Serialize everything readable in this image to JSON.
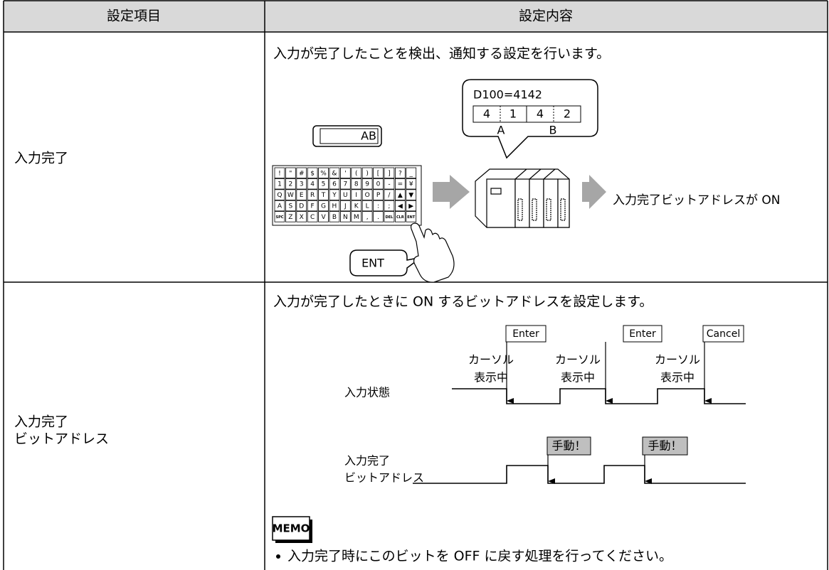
{
  "header": {
    "item": "設定項目",
    "content": "設定内容"
  },
  "rows": [
    {
      "item": [
        "入力完了"
      ],
      "description": "入力が完了したことを検出、通知する設定を行います。",
      "diagram": {
        "bubble_title": "D100=4142",
        "digits": [
          "4",
          "1",
          "4",
          "2"
        ],
        "groups": [
          "A",
          "B"
        ],
        "display": "AB",
        "keyboard": [
          [
            "!",
            "\"",
            "#",
            "$",
            "%",
            "&",
            "'",
            "(",
            ")",
            "[",
            "]",
            "?",
            "_"
          ],
          [
            "1",
            "2",
            "3",
            "4",
            "5",
            "6",
            "7",
            "8",
            "9",
            "0",
            "-",
            "=",
            "¥"
          ],
          [
            "Q",
            "W",
            "E",
            "R",
            "T",
            "Y",
            "U",
            "I",
            "O",
            "P",
            "/",
            "▲",
            "▼"
          ],
          [
            "A",
            "S",
            "D",
            "F",
            "G",
            "H",
            "J",
            "K",
            "L",
            ":",
            ";",
            "◀",
            "▶"
          ],
          [
            "SPC",
            "Z",
            "X",
            "C",
            "V",
            "B",
            "N",
            "M",
            ",",
            ".",
            "DEL",
            "CLR",
            "ENT"
          ]
        ],
        "key_callout": "ENT",
        "result": "入力完了ビットアドレスが ON"
      }
    },
    {
      "item": [
        "入力完了",
        "ビットアドレス"
      ],
      "description": "入力が完了したときに ON するビットアドレスを設定します。",
      "diagram": {
        "events": [
          "Enter",
          "Enter",
          "Cancel"
        ],
        "cursor_labels": [
          [
            "カーソル",
            "表示中"
          ],
          [
            "カーソル",
            "表示中"
          ],
          [
            "カーソル",
            "表示中"
          ]
        ],
        "signal1": [
          "入力状態"
        ],
        "signal2": [
          "入力完了",
          "ビットアドレス"
        ],
        "manual": [
          "手動！",
          "手動！"
        ]
      },
      "memo_title": "MEMO",
      "memo": "入力完了時にこのビットを OFF に戻す処理を行ってください。"
    }
  ]
}
